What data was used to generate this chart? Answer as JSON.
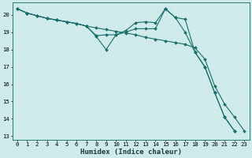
{
  "xlabel": "Humidex (Indice chaleur)",
  "bg_color": "#ceeaea",
  "grid_color": "#b0d8d8",
  "line_color": "#1a6e6a",
  "xlim": [
    -0.5,
    23.5
  ],
  "ylim": [
    12.8,
    20.7
  ],
  "yticks": [
    13,
    14,
    15,
    16,
    17,
    18,
    19,
    20
  ],
  "xticks": [
    0,
    1,
    2,
    3,
    4,
    5,
    6,
    7,
    8,
    9,
    10,
    11,
    12,
    13,
    14,
    15,
    16,
    17,
    18,
    19,
    20,
    21,
    22,
    23
  ],
  "line1_x": [
    0,
    1,
    2,
    3,
    4,
    5,
    6,
    7,
    8,
    9,
    10,
    11,
    12,
    13,
    14,
    15,
    16,
    17,
    18,
    19,
    20,
    21,
    22,
    23
  ],
  "line1_y": [
    20.35,
    20.1,
    19.95,
    19.8,
    19.7,
    19.6,
    19.5,
    19.35,
    19.25,
    19.15,
    19.05,
    18.95,
    18.85,
    18.7,
    18.6,
    18.5,
    18.4,
    18.3,
    18.1,
    17.45,
    15.9,
    14.85,
    14.1,
    13.3
  ],
  "line2_x": [
    0,
    1,
    2,
    3,
    4,
    5,
    6,
    7,
    8,
    9,
    10,
    11,
    12,
    13,
    14,
    15,
    16,
    17,
    18,
    19,
    20,
    21,
    22
  ],
  "line2_y": [
    20.35,
    20.1,
    19.95,
    19.8,
    19.7,
    19.6,
    19.5,
    19.35,
    18.75,
    18.0,
    18.85,
    19.1,
    19.55,
    19.6,
    19.55,
    20.35,
    19.85,
    19.75,
    17.85,
    17.0,
    15.5,
    14.1,
    13.3
  ],
  "line3_x": [
    0,
    1,
    2,
    3,
    4,
    5,
    6,
    7,
    8,
    9,
    10,
    11,
    12,
    13,
    14,
    15,
    16,
    17,
    18,
    19,
    20,
    21,
    22
  ],
  "line3_y": [
    20.35,
    20.1,
    19.95,
    19.8,
    19.7,
    19.6,
    19.5,
    19.35,
    18.8,
    18.85,
    18.85,
    19.0,
    19.2,
    19.2,
    19.2,
    20.35,
    19.85,
    19.0,
    17.85,
    17.0,
    15.5,
    14.1,
    13.3
  ],
  "xlabel_fontsize": 6.5,
  "tick_fontsize": 5.2
}
